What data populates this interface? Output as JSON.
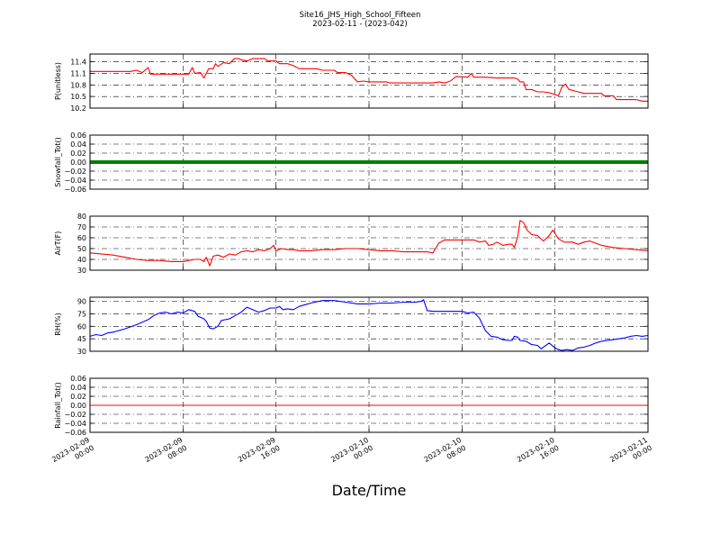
{
  "figure": {
    "title": "Site16_JHS_High_School_Fifteen",
    "subtitle": "2023-02-11 - (2023-042)",
    "xlabel": "Date/Time"
  },
  "chart_data": {
    "type": "line",
    "x_range": [
      "2023-02-09 00:00",
      "2023-02-11 00:00"
    ],
    "x_ticks": [
      {
        "t": 0,
        "line1": "2023-02-09",
        "line2": "00:00"
      },
      {
        "t": 8,
        "line1": "2023-02-09",
        "line2": "08:00"
      },
      {
        "t": 16,
        "line1": "2023-02-09",
        "line2": "16:00"
      },
      {
        "t": 24,
        "line1": "2023-02-10",
        "line2": "00:00"
      },
      {
        "t": 32,
        "line1": "2023-02-10",
        "line2": "08:00"
      },
      {
        "t": 40,
        "line1": "2023-02-10",
        "line2": "16:00"
      },
      {
        "t": 48,
        "line1": "2023-02-11",
        "line2": "00:00"
      }
    ],
    "grid": true,
    "panels": [
      {
        "name": "pressure",
        "ylabel": "P(unitless)",
        "ylim": [
          10.2,
          11.6
        ],
        "yticks": [
          "11.4",
          "11.1",
          "10.8",
          "10.5",
          "10.2"
        ],
        "ytick_values": [
          11.4,
          11.1,
          10.8,
          10.5,
          10.2
        ],
        "color": "#ff0000",
        "points": [
          [
            0,
            11.15
          ],
          [
            3.5,
            11.15
          ],
          [
            4,
            11.18
          ],
          [
            4.5,
            11.12
          ],
          [
            5,
            11.25
          ],
          [
            5.2,
            11.08
          ],
          [
            8.5,
            11.08
          ],
          [
            8.8,
            11.25
          ],
          [
            9,
            11.1
          ],
          [
            9.5,
            11.12
          ],
          [
            9.8,
            10.98
          ],
          [
            10.2,
            11.22
          ],
          [
            10.6,
            11.22
          ],
          [
            10.8,
            11.35
          ],
          [
            11,
            11.28
          ],
          [
            11.5,
            11.38
          ],
          [
            12,
            11.35
          ],
          [
            12.4,
            11.48
          ],
          [
            12.8,
            11.48
          ],
          [
            13,
            11.45
          ],
          [
            13.5,
            11.42
          ],
          [
            14,
            11.48
          ],
          [
            14.5,
            11.48
          ],
          [
            15,
            11.48
          ],
          [
            15.3,
            11.42
          ],
          [
            16,
            11.42
          ],
          [
            16.3,
            11.35
          ],
          [
            17,
            11.35
          ],
          [
            17.5,
            11.3
          ],
          [
            18,
            11.22
          ],
          [
            19.5,
            11.22
          ],
          [
            20,
            11.18
          ],
          [
            21,
            11.18
          ],
          [
            21.3,
            11.12
          ],
          [
            22,
            11.12
          ],
          [
            22.5,
            11.05
          ],
          [
            23,
            10.88
          ],
          [
            23.5,
            10.9
          ],
          [
            24,
            10.88
          ],
          [
            25.5,
            10.88
          ],
          [
            25.8,
            10.85
          ],
          [
            29.5,
            10.85
          ],
          [
            30,
            10.88
          ],
          [
            30.5,
            10.85
          ],
          [
            31,
            10.9
          ],
          [
            31.5,
            11.02
          ],
          [
            32.5,
            11.0
          ],
          [
            32.8,
            11.1
          ],
          [
            33,
            11.0
          ],
          [
            34,
            11.0
          ],
          [
            35,
            10.98
          ],
          [
            36.5,
            10.98
          ],
          [
            36.8,
            10.95
          ],
          [
            37,
            10.88
          ],
          [
            37.3,
            10.88
          ],
          [
            37.5,
            10.68
          ],
          [
            38,
            10.68
          ],
          [
            38.5,
            10.62
          ],
          [
            39,
            10.62
          ],
          [
            39.5,
            10.6
          ],
          [
            40,
            10.55
          ],
          [
            40.3,
            10.52
          ],
          [
            40.6,
            10.75
          ],
          [
            40.9,
            10.82
          ],
          [
            41.2,
            10.68
          ],
          [
            42,
            10.62
          ],
          [
            42.5,
            10.58
          ],
          [
            43,
            10.58
          ],
          [
            44,
            10.58
          ],
          [
            44.2,
            10.52
          ],
          [
            45,
            10.52
          ],
          [
            45.3,
            10.42
          ],
          [
            47,
            10.42
          ],
          [
            47.5,
            10.38
          ],
          [
            48,
            10.38
          ]
        ]
      },
      {
        "name": "snowfall",
        "ylabel": "Snowfall_Tot()",
        "ylim": [
          -0.06,
          0.06
        ],
        "yticks": [
          "0.06",
          "0.04",
          "0.02",
          "0.00",
          "−0.02",
          "−0.04",
          "−0.06"
        ],
        "ytick_values": [
          0.06,
          0.04,
          0.02,
          0.0,
          -0.02,
          -0.04,
          -0.06
        ],
        "color": "#008000",
        "thick": true,
        "points": [
          [
            0,
            0
          ],
          [
            48,
            0
          ]
        ]
      },
      {
        "name": "air_temp",
        "ylabel": "AirT(F)",
        "ylim": [
          30,
          80
        ],
        "yticks": [
          "80",
          "70",
          "60",
          "50",
          "40",
          "30"
        ],
        "ytick_values": [
          80,
          70,
          60,
          50,
          40,
          30
        ],
        "color": "#ff0000",
        "points": [
          [
            0,
            46
          ],
          [
            2,
            44
          ],
          [
            3,
            42
          ],
          [
            4,
            40
          ],
          [
            5,
            39
          ],
          [
            6,
            39
          ],
          [
            7,
            38
          ],
          [
            8,
            38
          ],
          [
            8.5,
            39
          ],
          [
            9,
            40
          ],
          [
            9.5,
            40
          ],
          [
            9.8,
            38
          ],
          [
            10,
            42
          ],
          [
            10.3,
            34
          ],
          [
            10.6,
            43
          ],
          [
            11,
            44
          ],
          [
            11.5,
            42
          ],
          [
            12,
            45
          ],
          [
            12.5,
            44
          ],
          [
            13,
            47
          ],
          [
            13.5,
            48
          ],
          [
            14,
            47
          ],
          [
            14.5,
            49
          ],
          [
            15,
            48
          ],
          [
            15.5,
            50
          ],
          [
            15.8,
            53
          ],
          [
            16,
            48
          ],
          [
            16.5,
            50
          ],
          [
            17,
            49
          ],
          [
            17.5,
            49
          ],
          [
            18,
            48
          ],
          [
            19,
            48
          ],
          [
            20,
            49
          ],
          [
            21,
            49
          ],
          [
            22,
            50
          ],
          [
            23,
            50
          ],
          [
            24,
            49
          ],
          [
            25,
            48
          ],
          [
            26,
            48
          ],
          [
            27,
            47
          ],
          [
            28,
            47
          ],
          [
            29,
            47
          ],
          [
            29.5,
            46
          ],
          [
            30,
            55
          ],
          [
            30.5,
            58
          ],
          [
            31,
            58
          ],
          [
            32,
            58
          ],
          [
            33,
            58
          ],
          [
            33.5,
            56
          ],
          [
            34,
            57
          ],
          [
            34.3,
            53
          ],
          [
            34.7,
            54
          ],
          [
            35,
            56
          ],
          [
            35.5,
            53
          ],
          [
            36,
            54
          ],
          [
            36.3,
            54
          ],
          [
            36.5,
            51
          ],
          [
            36.8,
            61
          ],
          [
            37,
            76
          ],
          [
            37.3,
            74
          ],
          [
            37.6,
            67
          ],
          [
            38,
            63
          ],
          [
            38.5,
            62
          ],
          [
            39,
            57
          ],
          [
            39.5,
            62
          ],
          [
            39.8,
            67
          ],
          [
            40,
            64
          ],
          [
            40.3,
            59
          ],
          [
            40.8,
            56
          ],
          [
            41.5,
            56
          ],
          [
            42,
            54
          ],
          [
            42.5,
            56
          ],
          [
            43,
            57
          ],
          [
            43.5,
            55
          ],
          [
            44,
            53
          ],
          [
            45,
            51
          ],
          [
            46,
            50
          ],
          [
            47,
            49
          ],
          [
            48,
            48
          ]
        ]
      },
      {
        "name": "rh",
        "ylabel": "RH(%)",
        "ylim": [
          30,
          95
        ],
        "yticks": [
          "90",
          "75",
          "60",
          "45",
          "30"
        ],
        "ytick_values": [
          90,
          75,
          60,
          45,
          30
        ],
        "color": "#0000ff",
        "points": [
          [
            0,
            48
          ],
          [
            0.5,
            50
          ],
          [
            1,
            49
          ],
          [
            1.5,
            52
          ],
          [
            2,
            53
          ],
          [
            3,
            57
          ],
          [
            4,
            62
          ],
          [
            5,
            68
          ],
          [
            5.5,
            73
          ],
          [
            6,
            76
          ],
          [
            6.5,
            77
          ],
          [
            7,
            75
          ],
          [
            7.5,
            77
          ],
          [
            8,
            76
          ],
          [
            8.5,
            80
          ],
          [
            9,
            78
          ],
          [
            9.3,
            72
          ],
          [
            9.8,
            69
          ],
          [
            10,
            66
          ],
          [
            10.3,
            58
          ],
          [
            10.6,
            57
          ],
          [
            11,
            60
          ],
          [
            11.3,
            67
          ],
          [
            12,
            69
          ],
          [
            12.5,
            73
          ],
          [
            13,
            77
          ],
          [
            13.5,
            83
          ],
          [
            14,
            80
          ],
          [
            14.5,
            77
          ],
          [
            15,
            79
          ],
          [
            15.5,
            82
          ],
          [
            16,
            82
          ],
          [
            16.3,
            84
          ],
          [
            16.6,
            80
          ],
          [
            17,
            81
          ],
          [
            17.5,
            80
          ],
          [
            18,
            84
          ],
          [
            18.5,
            86
          ],
          [
            19,
            88
          ],
          [
            20,
            91
          ],
          [
            21,
            91
          ],
          [
            22,
            89
          ],
          [
            23,
            87
          ],
          [
            24,
            87
          ],
          [
            25,
            88
          ],
          [
            26,
            88
          ],
          [
            27,
            89
          ],
          [
            28,
            89
          ],
          [
            28.5,
            90
          ],
          [
            28.7,
            92
          ],
          [
            29,
            79
          ],
          [
            29.5,
            78
          ],
          [
            30,
            78
          ],
          [
            31,
            78
          ],
          [
            32,
            78
          ],
          [
            32.5,
            76
          ],
          [
            33,
            77
          ],
          [
            33.5,
            70
          ],
          [
            34,
            55
          ],
          [
            34.5,
            48
          ],
          [
            35,
            47
          ],
          [
            35.5,
            44
          ],
          [
            36,
            43
          ],
          [
            36.3,
            43
          ],
          [
            36.5,
            48
          ],
          [
            36.8,
            47
          ],
          [
            37,
            43
          ],
          [
            37.5,
            42
          ],
          [
            38,
            38
          ],
          [
            38.5,
            37
          ],
          [
            38.8,
            33
          ],
          [
            39,
            35
          ],
          [
            39.5,
            40
          ],
          [
            40,
            34
          ],
          [
            40.3,
            32
          ],
          [
            40.6,
            31
          ],
          [
            41,
            32
          ],
          [
            41.5,
            31
          ],
          [
            42,
            34
          ],
          [
            42.5,
            35
          ],
          [
            43,
            37
          ],
          [
            43.5,
            40
          ],
          [
            44,
            42
          ],
          [
            44.5,
            43
          ],
          [
            45,
            44
          ],
          [
            45.5,
            45
          ],
          [
            46,
            46
          ],
          [
            46.5,
            48
          ],
          [
            47,
            49
          ],
          [
            47.5,
            48
          ],
          [
            48,
            49
          ]
        ]
      },
      {
        "name": "rainfall",
        "ylabel": "Rainfall_Tot()",
        "ylim": [
          -0.06,
          0.06
        ],
        "yticks": [
          "0.06",
          "0.04",
          "0.02",
          "0.00",
          "−0.02",
          "−0.04",
          "−0.06"
        ],
        "ytick_values": [
          0.06,
          0.04,
          0.02,
          0.0,
          -0.02,
          -0.04,
          -0.06
        ],
        "color": "#ff0000",
        "points": [
          [
            0,
            0
          ],
          [
            48,
            0
          ]
        ]
      }
    ]
  }
}
